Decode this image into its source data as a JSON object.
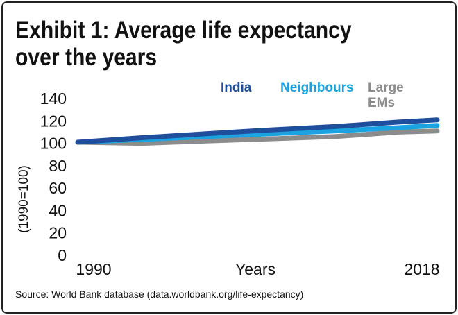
{
  "title": "Exhibit 1: Average life expectancy over the years",
  "source": "Source: World Bank database (data.worldbank.org/life-expectancy)",
  "colors": {
    "India": "#1f4e9c",
    "Neighbours": "#1aa3e0",
    "Large EMs": "#8c8c8c"
  },
  "chart_data": {
    "type": "line",
    "title": "Exhibit 1: Average life expectancy over the years",
    "xlabel": "Years",
    "ylabel": "(1990=100)",
    "x_tick_labels": [
      "1990",
      "2018"
    ],
    "x": [
      1990,
      1995,
      2000,
      2005,
      2010,
      2015,
      2018
    ],
    "xlim": [
      1990,
      2018
    ],
    "yticks": [
      0,
      20,
      40,
      60,
      80,
      100,
      120,
      140
    ],
    "ylim": [
      0,
      140
    ],
    "grid": false,
    "legend_position": "top-right",
    "series": [
      {
        "name": "Large EMs",
        "values": [
          101,
          100,
          102,
          104,
          106,
          110,
          111
        ]
      },
      {
        "name": "Neighbours",
        "values": [
          101,
          103.5,
          106,
          108.5,
          111,
          114,
          116
        ]
      },
      {
        "name": "India",
        "values": [
          101,
          105,
          108.5,
          112,
          115,
          119,
          121
        ]
      }
    ]
  }
}
